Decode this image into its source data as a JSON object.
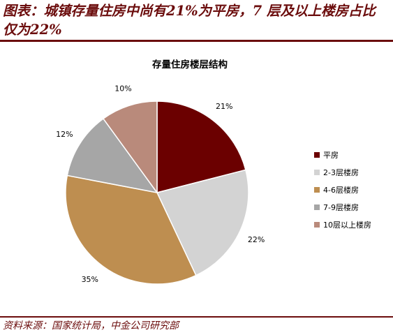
{
  "page": {
    "heading": "图表：城镇存量住房中尚有21%为平房，7 层及以上楼房占比仅为22%",
    "source": "资料来源：国家统计局，中金公司研究部",
    "colors": {
      "brand": "#6b0c0c"
    }
  },
  "chart_data": {
    "type": "pie",
    "title": "存量住房楼层结构",
    "legend_position": "right",
    "slices": [
      {
        "label": "平房",
        "value": 21,
        "display": "21%",
        "color": "#6b0000"
      },
      {
        "label": "2-3层楼房",
        "value": 22,
        "display": "22%",
        "color": "#d3d3d3"
      },
      {
        "label": "4-6层楼房",
        "value": 35,
        "display": "35%",
        "color": "#be8e50"
      },
      {
        "label": "7-9层楼房",
        "value": 12,
        "display": "12%",
        "color": "#a6a6a6"
      },
      {
        "label": "10层以上楼房",
        "value": 10,
        "display": "10%",
        "color": "#b98a7b"
      }
    ]
  }
}
